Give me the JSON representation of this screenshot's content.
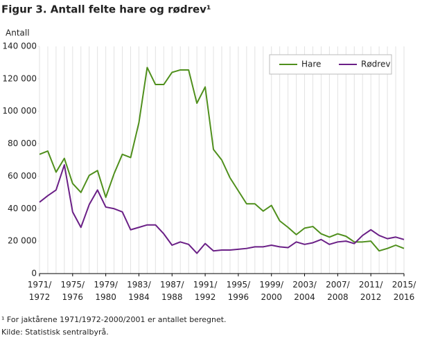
{
  "chart_data": {
    "type": "line",
    "title": "Figur 3. Antall felte hare og rødrev¹",
    "y_label": "Antall",
    "footnotes": [
      "¹ For jaktårene 1971/1972-2000/2001 er antallet beregnet.",
      "Kilde: Statistisk sentralbyrå."
    ],
    "categories": [
      "1971/1972",
      null,
      null,
      null,
      "1975/1976",
      null,
      null,
      null,
      "1979/1980",
      null,
      null,
      null,
      "1983/1984",
      null,
      null,
      null,
      "1987/1988",
      null,
      null,
      null,
      "1991/1992",
      null,
      null,
      null,
      "1995/1996",
      null,
      null,
      null,
      "1999/2000",
      null,
      null,
      null,
      "2003/2004",
      null,
      null,
      null,
      "2007/2008",
      null,
      null,
      null,
      "2011/2012",
      null,
      null,
      null,
      "2015/2016"
    ],
    "series": [
      {
        "name": "Hare",
        "color": "#4f8f1c",
        "values": [
          73500,
          75500,
          62500,
          71000,
          55500,
          50000,
          60500,
          63500,
          47000,
          61500,
          73500,
          71500,
          93000,
          127000,
          116500,
          116500,
          124000,
          125500,
          125500,
          105000,
          115000,
          76500,
          70000,
          59000,
          51000,
          43000,
          43000,
          38500,
          42000,
          32500,
          28500,
          24000,
          28000,
          29000,
          24500,
          22500,
          24500,
          23000,
          19500,
          19500,
          20000,
          14000,
          15500,
          17500,
          15500
        ]
      },
      {
        "name": "Rødrev",
        "color": "#6a1f86",
        "values": [
          44000,
          48000,
          51500,
          67000,
          38000,
          28500,
          42500,
          51500,
          41000,
          40000,
          38000,
          27000,
          28500,
          30000,
          30000,
          24500,
          17500,
          19500,
          18000,
          12500,
          18500,
          14000,
          14500,
          14500,
          15000,
          15500,
          16500,
          16500,
          17500,
          16500,
          16000,
          19500,
          18000,
          19000,
          21000,
          18000,
          19500,
          20000,
          18500,
          23500,
          27000,
          23500,
          21500,
          22500,
          21000
        ]
      }
    ],
    "ylim": [
      0,
      140000
    ],
    "yticks": [
      0,
      {
        "value": 20000,
        "label": "20 000"
      },
      {
        "value": 40000,
        "label": "40 000"
      },
      {
        "value": 60000,
        "label": "60 000"
      },
      {
        "value": 80000,
        "label": "80 000"
      },
      {
        "value": 100000,
        "label": "100 000"
      },
      {
        "value": 120000,
        "label": "120 000"
      },
      {
        "value": 140000,
        "label": "140 000"
      }
    ],
    "grid": true,
    "legend": "top-right"
  }
}
